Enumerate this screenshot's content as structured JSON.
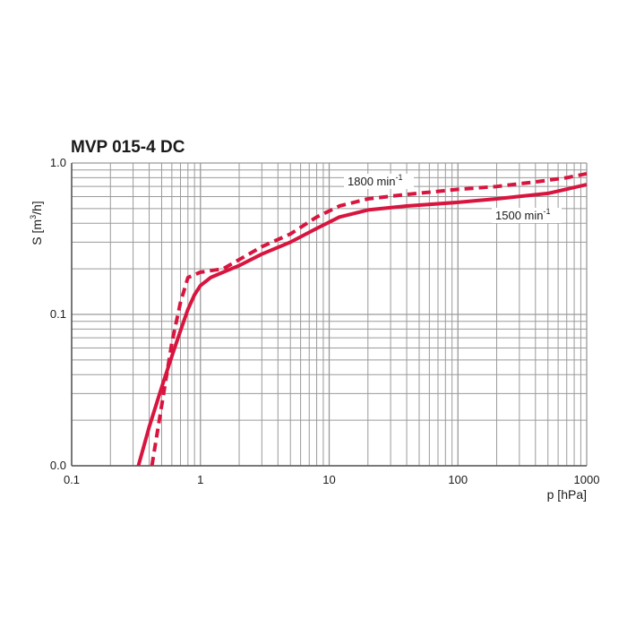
{
  "chart_data": {
    "type": "line",
    "title": "MVP 015-4 DC",
    "xlabel": "p [hPa]",
    "ylabel_main": "S  [m",
    "ylabel_sup": "3",
    "ylabel_tail": "/h]",
    "x_scale": "log",
    "xlim": [
      0.1,
      1000
    ],
    "x_ticks": [
      0.1,
      1,
      10,
      100,
      1000
    ],
    "x_tick_labels": [
      "0.1",
      "1",
      "10",
      "100",
      "1000"
    ],
    "y_scale": "log",
    "ylim": [
      0.01,
      1.0
    ],
    "y_ticks": [
      0.01,
      0.1,
      1.0
    ],
    "y_tick_labels": [
      "0.0",
      "0.1",
      "1.0"
    ],
    "grid": true,
    "colors": {
      "curve": "#d8153f",
      "grid": "#9a9a9a",
      "axis": "#555555"
    },
    "series": [
      {
        "name": "1800 min",
        "name_sup": "-1",
        "style": "dashed",
        "x": [
          0.42,
          0.5,
          0.6,
          0.7,
          0.8,
          1.0,
          1.5,
          2,
          3,
          5,
          8,
          12,
          20,
          40,
          100,
          200,
          400,
          700,
          1000
        ],
        "y": [
          0.01,
          0.025,
          0.065,
          0.12,
          0.175,
          0.19,
          0.2,
          0.23,
          0.28,
          0.34,
          0.44,
          0.52,
          0.58,
          0.62,
          0.67,
          0.7,
          0.75,
          0.8,
          0.85
        ]
      },
      {
        "name": "1500 min",
        "name_sup": "-1",
        "style": "solid",
        "x": [
          0.33,
          0.4,
          0.5,
          0.6,
          0.7,
          0.8,
          0.9,
          1.0,
          1.2,
          1.5,
          2,
          3,
          5,
          8,
          12,
          20,
          40,
          100,
          200,
          500,
          1000
        ],
        "y": [
          0.01,
          0.018,
          0.033,
          0.053,
          0.078,
          0.108,
          0.135,
          0.155,
          0.175,
          0.19,
          0.21,
          0.25,
          0.3,
          0.37,
          0.44,
          0.49,
          0.52,
          0.55,
          0.58,
          0.63,
          0.72
        ]
      }
    ]
  }
}
